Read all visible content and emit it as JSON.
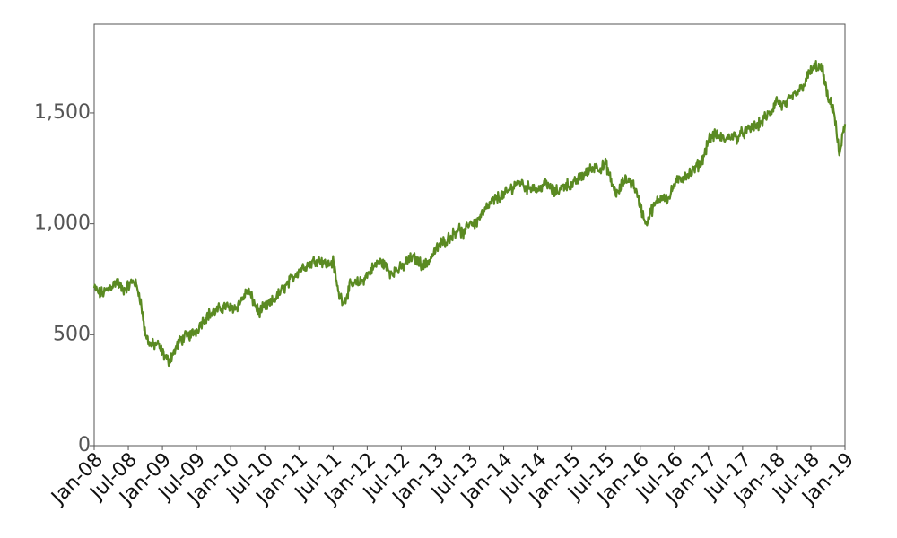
{
  "chart_data": {
    "type": "line",
    "title": "",
    "xlabel": "",
    "ylabel": "",
    "ylim": [
      0,
      1900
    ],
    "xlim": [
      "2008-01",
      "2019-01"
    ],
    "grid": false,
    "legend": "none",
    "y_ticks": [
      {
        "value": 0,
        "label": "0"
      },
      {
        "value": 500,
        "label": "500"
      },
      {
        "value": 1000,
        "label": "1,000"
      },
      {
        "value": 1500,
        "label": "1,500"
      }
    ],
    "x_ticks": [
      {
        "value": "2008-01",
        "label": "Jan-08"
      },
      {
        "value": "2008-07",
        "label": "Jul-08"
      },
      {
        "value": "2009-01",
        "label": "Jan-09"
      },
      {
        "value": "2009-07",
        "label": "Jul-09"
      },
      {
        "value": "2010-01",
        "label": "Jan-10"
      },
      {
        "value": "2010-07",
        "label": "Jul-10"
      },
      {
        "value": "2011-01",
        "label": "Jan-11"
      },
      {
        "value": "2011-07",
        "label": "Jul-11"
      },
      {
        "value": "2012-01",
        "label": "Jan-12"
      },
      {
        "value": "2012-07",
        "label": "Jul-12"
      },
      {
        "value": "2013-01",
        "label": "Jan-13"
      },
      {
        "value": "2013-07",
        "label": "Jul-13"
      },
      {
        "value": "2014-01",
        "label": "Jan-14"
      },
      {
        "value": "2014-07",
        "label": "Jul-14"
      },
      {
        "value": "2015-01",
        "label": "Jan-15"
      },
      {
        "value": "2015-07",
        "label": "Jul-15"
      },
      {
        "value": "2016-01",
        "label": "Jan-16"
      },
      {
        "value": "2016-07",
        "label": "Jul-16"
      },
      {
        "value": "2017-01",
        "label": "Jan-17"
      },
      {
        "value": "2017-07",
        "label": "Jul-17"
      },
      {
        "value": "2018-01",
        "label": "Jan-18"
      },
      {
        "value": "2018-07",
        "label": "Jul-18"
      },
      {
        "value": "2019-01",
        "label": "Jan-19"
      }
    ],
    "series": [
      {
        "color": "#5a8a22",
        "x": [
          "2008-01",
          "2008-02",
          "2008-03",
          "2008-04",
          "2008-05",
          "2008-06",
          "2008-07",
          "2008-08",
          "2008-09",
          "2008-10",
          "2008-11",
          "2008-12",
          "2009-01",
          "2009-02",
          "2009-03",
          "2009-04",
          "2009-05",
          "2009-06",
          "2009-07",
          "2009-08",
          "2009-09",
          "2009-10",
          "2009-11",
          "2009-12",
          "2010-01",
          "2010-02",
          "2010-03",
          "2010-04",
          "2010-05",
          "2010-06",
          "2010-07",
          "2010-08",
          "2010-09",
          "2010-10",
          "2010-11",
          "2010-12",
          "2011-01",
          "2011-02",
          "2011-03",
          "2011-04",
          "2011-05",
          "2011-06",
          "2011-07",
          "2011-08",
          "2011-09",
          "2011-10",
          "2011-11",
          "2011-12",
          "2012-01",
          "2012-02",
          "2012-03",
          "2012-04",
          "2012-05",
          "2012-06",
          "2012-07",
          "2012-08",
          "2012-09",
          "2012-10",
          "2012-11",
          "2012-12",
          "2013-01",
          "2013-02",
          "2013-03",
          "2013-04",
          "2013-05",
          "2013-06",
          "2013-07",
          "2013-08",
          "2013-09",
          "2013-10",
          "2013-11",
          "2013-12",
          "2014-01",
          "2014-02",
          "2014-03",
          "2014-04",
          "2014-05",
          "2014-06",
          "2014-07",
          "2014-08",
          "2014-09",
          "2014-10",
          "2014-11",
          "2014-12",
          "2015-01",
          "2015-02",
          "2015-03",
          "2015-04",
          "2015-05",
          "2015-06",
          "2015-07",
          "2015-08",
          "2015-09",
          "2015-10",
          "2015-11",
          "2015-12",
          "2016-01",
          "2016-02",
          "2016-03",
          "2016-04",
          "2016-05",
          "2016-06",
          "2016-07",
          "2016-08",
          "2016-09",
          "2016-10",
          "2016-11",
          "2016-12",
          "2017-01",
          "2017-02",
          "2017-03",
          "2017-04",
          "2017-05",
          "2017-06",
          "2017-07",
          "2017-08",
          "2017-09",
          "2017-10",
          "2017-11",
          "2017-12",
          "2018-01",
          "2018-02",
          "2018-03",
          "2018-04",
          "2018-05",
          "2018-06",
          "2018-07",
          "2018-08",
          "2018-09",
          "2018-10",
          "2018-11",
          "2018-12",
          "2019-01"
        ],
        "y": [
          710,
          685,
          695,
          720,
          740,
          700,
          720,
          745,
          680,
          500,
          450,
          460,
          420,
          380,
          420,
          470,
          490,
          500,
          520,
          560,
          590,
          600,
          615,
          630,
          620,
          625,
          660,
          700,
          650,
          600,
          625,
          640,
          670,
          700,
          730,
          760,
          790,
          810,
          820,
          840,
          835,
          815,
          830,
          680,
          650,
          720,
          730,
          740,
          770,
          800,
          830,
          820,
          780,
          790,
          800,
          830,
          850,
          830,
          810,
          840,
          880,
          910,
          930,
          950,
          980,
          950,
          1010,
          1000,
          1040,
          1070,
          1100,
          1120,
          1130,
          1150,
          1180,
          1190,
          1160,
          1170,
          1150,
          1180,
          1170,
          1140,
          1160,
          1180,
          1170,
          1200,
          1220,
          1240,
          1260,
          1250,
          1270,
          1180,
          1130,
          1190,
          1200,
          1170,
          1080,
          1000,
          1060,
          1100,
          1130,
          1110,
          1180,
          1200,
          1220,
          1230,
          1260,
          1290,
          1380,
          1400,
          1390,
          1380,
          1400,
          1390,
          1410,
          1420,
          1440,
          1450,
          1480,
          1500,
          1560,
          1530,
          1550,
          1580,
          1600,
          1640,
          1690,
          1710,
          1700,
          1560,
          1520,
          1310,
          1450
        ]
      }
    ]
  }
}
